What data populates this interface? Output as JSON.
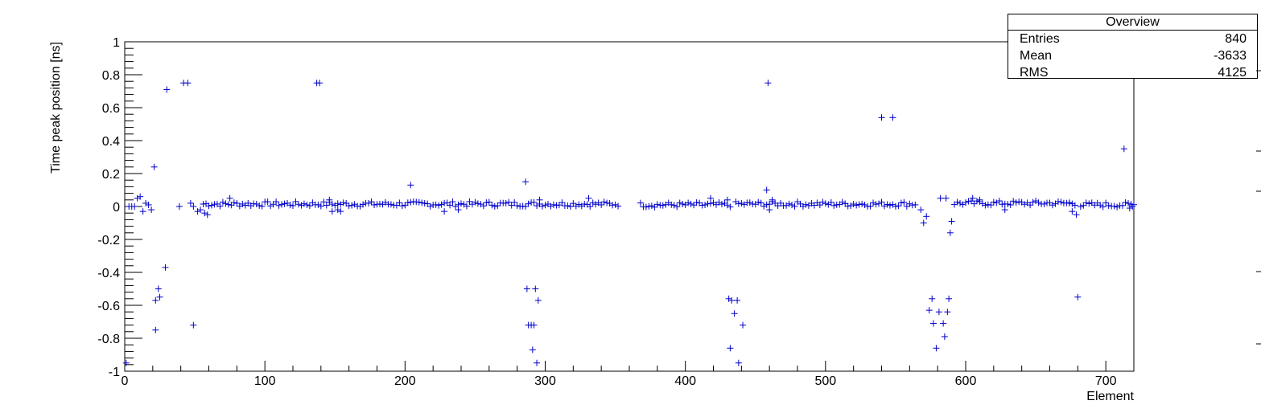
{
  "chart_data": {
    "type": "scatter",
    "title": "",
    "xlabel": "Element",
    "ylabel": "Time peak position [ns]",
    "xlim": [
      0,
      720
    ],
    "ylim": [
      -1,
      1
    ],
    "x_tick_labels": [
      "0",
      "100",
      "200",
      "300",
      "400",
      "500",
      "600",
      "700"
    ],
    "y_tick_labels": [
      "-1",
      "-0.8",
      "-0.6",
      "-0.4",
      "-0.2",
      "0",
      "0.2",
      "0.4",
      "0.6",
      "0.8",
      "1"
    ],
    "grid": false,
    "marker": "+",
    "color": "#0000cc",
    "band_segments": [
      {
        "from": 56,
        "to": 352,
        "mean": 0.015
      },
      {
        "from": 368,
        "to": 432,
        "mean": 0.01
      },
      {
        "from": 436,
        "to": 565,
        "mean": 0.015
      },
      {
        "from": 592,
        "to": 678,
        "mean": 0.02
      },
      {
        "from": 682,
        "to": 720,
        "mean": 0.01
      }
    ],
    "outliers": [
      {
        "x": 1,
        "y": -0.95
      },
      {
        "x": 3,
        "y": 0.0
      },
      {
        "x": 5,
        "y": 0.0
      },
      {
        "x": 7,
        "y": 0.0
      },
      {
        "x": 9,
        "y": 0.05
      },
      {
        "x": 11,
        "y": 0.06
      },
      {
        "x": 13,
        "y": -0.03
      },
      {
        "x": 15,
        "y": 0.02
      },
      {
        "x": 17,
        "y": 0.01
      },
      {
        "x": 19,
        "y": -0.02
      },
      {
        "x": 21,
        "y": 0.24
      },
      {
        "x": 22,
        "y": -0.57
      },
      {
        "x": 22,
        "y": -0.75
      },
      {
        "x": 24,
        "y": -0.5
      },
      {
        "x": 25,
        "y": -0.55
      },
      {
        "x": 29,
        "y": -0.37
      },
      {
        "x": 30,
        "y": 0.71
      },
      {
        "x": 39,
        "y": 0.0
      },
      {
        "x": 42,
        "y": 0.75
      },
      {
        "x": 45,
        "y": 0.75
      },
      {
        "x": 47,
        "y": 0.02
      },
      {
        "x": 49,
        "y": 0.0
      },
      {
        "x": 49,
        "y": -0.72
      },
      {
        "x": 52,
        "y": -0.03
      },
      {
        "x": 54,
        "y": -0.02
      },
      {
        "x": 57,
        "y": -0.04
      },
      {
        "x": 59,
        "y": -0.05
      },
      {
        "x": 75,
        "y": 0.05
      },
      {
        "x": 137,
        "y": 0.75
      },
      {
        "x": 139,
        "y": 0.75
      },
      {
        "x": 146,
        "y": 0.04
      },
      {
        "x": 148,
        "y": -0.03
      },
      {
        "x": 152,
        "y": -0.02
      },
      {
        "x": 154,
        "y": -0.03
      },
      {
        "x": 204,
        "y": 0.13
      },
      {
        "x": 228,
        "y": -0.03
      },
      {
        "x": 238,
        "y": -0.02
      },
      {
        "x": 286,
        "y": 0.15
      },
      {
        "x": 287,
        "y": -0.5
      },
      {
        "x": 288,
        "y": -0.72
      },
      {
        "x": 290,
        "y": -0.72
      },
      {
        "x": 291,
        "y": -0.87
      },
      {
        "x": 292,
        "y": -0.72
      },
      {
        "x": 293,
        "y": -0.5
      },
      {
        "x": 294,
        "y": -0.95
      },
      {
        "x": 295,
        "y": -0.57
      },
      {
        "x": 296,
        "y": 0.04
      },
      {
        "x": 331,
        "y": 0.05
      },
      {
        "x": 418,
        "y": 0.05
      },
      {
        "x": 430,
        "y": 0.04
      },
      {
        "x": 431,
        "y": -0.56
      },
      {
        "x": 432,
        "y": -0.86
      },
      {
        "x": 433,
        "y": -0.57
      },
      {
        "x": 435,
        "y": -0.65
      },
      {
        "x": 437,
        "y": -0.57
      },
      {
        "x": 438,
        "y": -0.95
      },
      {
        "x": 441,
        "y": -0.72
      },
      {
        "x": 458,
        "y": 0.1
      },
      {
        "x": 459,
        "y": 0.75
      },
      {
        "x": 460,
        "y": -0.02
      },
      {
        "x": 462,
        "y": 0.04
      },
      {
        "x": 540,
        "y": 0.54
      },
      {
        "x": 548,
        "y": 0.54
      },
      {
        "x": 568,
        "y": -0.02
      },
      {
        "x": 570,
        "y": -0.1
      },
      {
        "x": 572,
        "y": -0.06
      },
      {
        "x": 574,
        "y": -0.63
      },
      {
        "x": 576,
        "y": -0.56
      },
      {
        "x": 577,
        "y": -0.71
      },
      {
        "x": 579,
        "y": -0.86
      },
      {
        "x": 581,
        "y": -0.64
      },
      {
        "x": 582,
        "y": 0.05
      },
      {
        "x": 584,
        "y": -0.71
      },
      {
        "x": 585,
        "y": -0.79
      },
      {
        "x": 586,
        "y": 0.05
      },
      {
        "x": 587,
        "y": -0.64
      },
      {
        "x": 588,
        "y": -0.56
      },
      {
        "x": 589,
        "y": -0.16
      },
      {
        "x": 590,
        "y": -0.09
      },
      {
        "x": 605,
        "y": 0.05
      },
      {
        "x": 610,
        "y": 0.04
      },
      {
        "x": 628,
        "y": -0.02
      },
      {
        "x": 674,
        "y": 0.02
      },
      {
        "x": 676,
        "y": -0.03
      },
      {
        "x": 679,
        "y": -0.05
      },
      {
        "x": 680,
        "y": -0.55
      },
      {
        "x": 713,
        "y": 0.35
      },
      {
        "x": 717,
        "y": -0.01
      },
      {
        "x": 719,
        "y": 0.0
      }
    ]
  },
  "stats": {
    "title": "Overview",
    "rows": [
      {
        "label": "Entries",
        "value": "840"
      },
      {
        "label": "Mean",
        "value": "-3633"
      },
      {
        "label": "RMS",
        "value": "4125"
      }
    ]
  }
}
